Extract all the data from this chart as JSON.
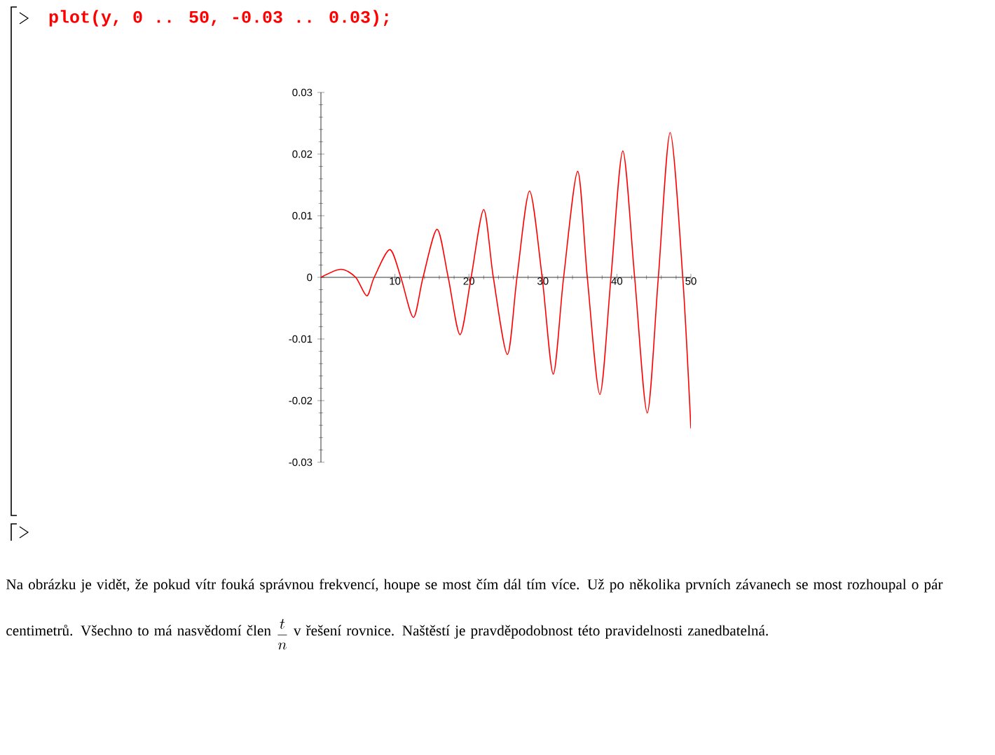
{
  "chart_data": {
    "type": "line",
    "title": "plot(y, 0 .. 50, -0.03 .. 0.03);",
    "x": [
      0,
      2.7,
      4.7,
      6.2,
      7.2,
      9.3,
      10.8,
      12.5,
      13.8,
      15.7,
      17.2,
      18.8,
      20.3,
      22.0,
      23.3,
      25.2,
      26.5,
      28.2,
      29.9,
      31.4,
      32.8,
      34.7,
      36.0,
      37.7,
      39.2,
      40.8,
      42.4,
      44.1,
      45.6,
      47.2,
      48.9,
      50
    ],
    "series": [
      {
        "color": "#ff0000",
        "values": [
          0,
          0.0013,
          0,
          -0.003,
          0,
          0.0045,
          0,
          -0.0065,
          0,
          0.0078,
          0,
          -0.0093,
          0,
          0.011,
          0,
          -0.0125,
          0,
          0.014,
          0,
          -0.0157,
          0,
          0.0172,
          0,
          -0.019,
          0,
          0.0205,
          0,
          -0.022,
          0,
          0.0235,
          0,
          -0.0245
        ]
      }
    ],
    "xlim": [
      0,
      50
    ],
    "ylim": [
      -0.03,
      0.03
    ],
    "xticks": [
      10,
      20,
      30,
      40,
      50
    ],
    "yticks": [
      -0.03,
      -0.02,
      -0.01,
      0,
      0.01,
      0.02,
      0.03
    ],
    "grid": false,
    "marker": "none",
    "line_style": "solid",
    "annotations": [
      "Na obrázku je vidět, že pokud vítr fouká správnou frekvencí, houpe se most čím dál tím více. Už po několika prvních závanech se most rozhoupal o pár centimetrů. Všechno to má nasvědomí člen",
      "\\frac{t}{n}",
      "v řešení rovnice. Naštěstí je pravděpodobnost této pravidelnosti zanedbatelná."
    ]
  }
}
